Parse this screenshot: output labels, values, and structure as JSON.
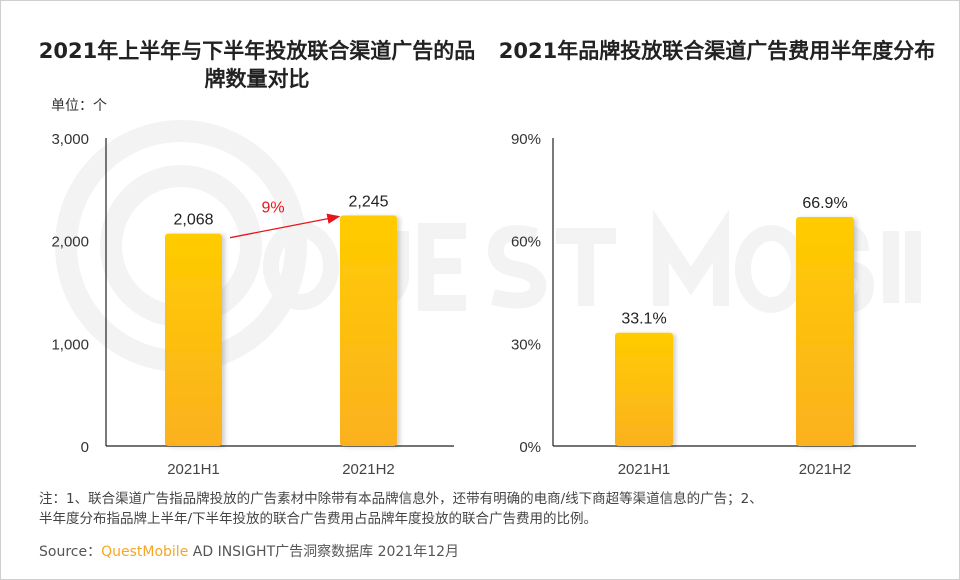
{
  "charts_titles": [
    "2021年上半年与下半年投放联合渠道广告的品牌数量对比",
    "2021年品牌投放联合渠道广告费用半年度分布"
  ],
  "unit": "单位：个",
  "watermark": "QUEST MOBILE",
  "colors": {
    "bar_top": "#ffcc00",
    "bar_bottom": "#fbb11f",
    "growth_arrow": "#e8141b",
    "axis": "#222222"
  },
  "chart_data": [
    {
      "type": "bar",
      "title": "2021年上半年与下半年投放联合渠道广告的品牌数量对比",
      "categories": [
        "2021H1",
        "2021H2"
      ],
      "values": [
        2068,
        2245
      ],
      "labels": [
        "2,068",
        "2,245"
      ],
      "ylim": [
        0,
        3000
      ],
      "yticks": [
        0,
        1000,
        2000,
        3000
      ],
      "ytick_labels": [
        "0",
        "1,000",
        "2,000",
        "3,000"
      ],
      "annotation": {
        "text": "9%",
        "type": "growth-arrow",
        "from": "2021H1",
        "to": "2021H2"
      },
      "grid": false
    },
    {
      "type": "bar",
      "title": "2021年品牌投放联合渠道广告费用半年度分布",
      "categories": [
        "2021H1",
        "2021H2"
      ],
      "values": [
        33.1,
        66.9
      ],
      "labels": [
        "33.1%",
        "66.9%"
      ],
      "ylim": [
        0,
        90
      ],
      "yticks": [
        0,
        30,
        60,
        90
      ],
      "ytick_labels": [
        "0%",
        "30%",
        "60%",
        "90%"
      ],
      "grid": false
    }
  ],
  "notes": [
    "注：1、联合渠道广告指品牌投放的广告素材中除带有本品牌信息外，还带有明确的电商/线下商超等渠道信息的广告；2、",
    "半年度分布指品牌上半年/下半年投放的联合广告费用占品牌年度投放的联合广告费用的比例。"
  ],
  "source": {
    "label": "Source：",
    "brand": "QuestMobile",
    "text": " AD INSIGHT广告洞察数据库 2021年12月"
  }
}
